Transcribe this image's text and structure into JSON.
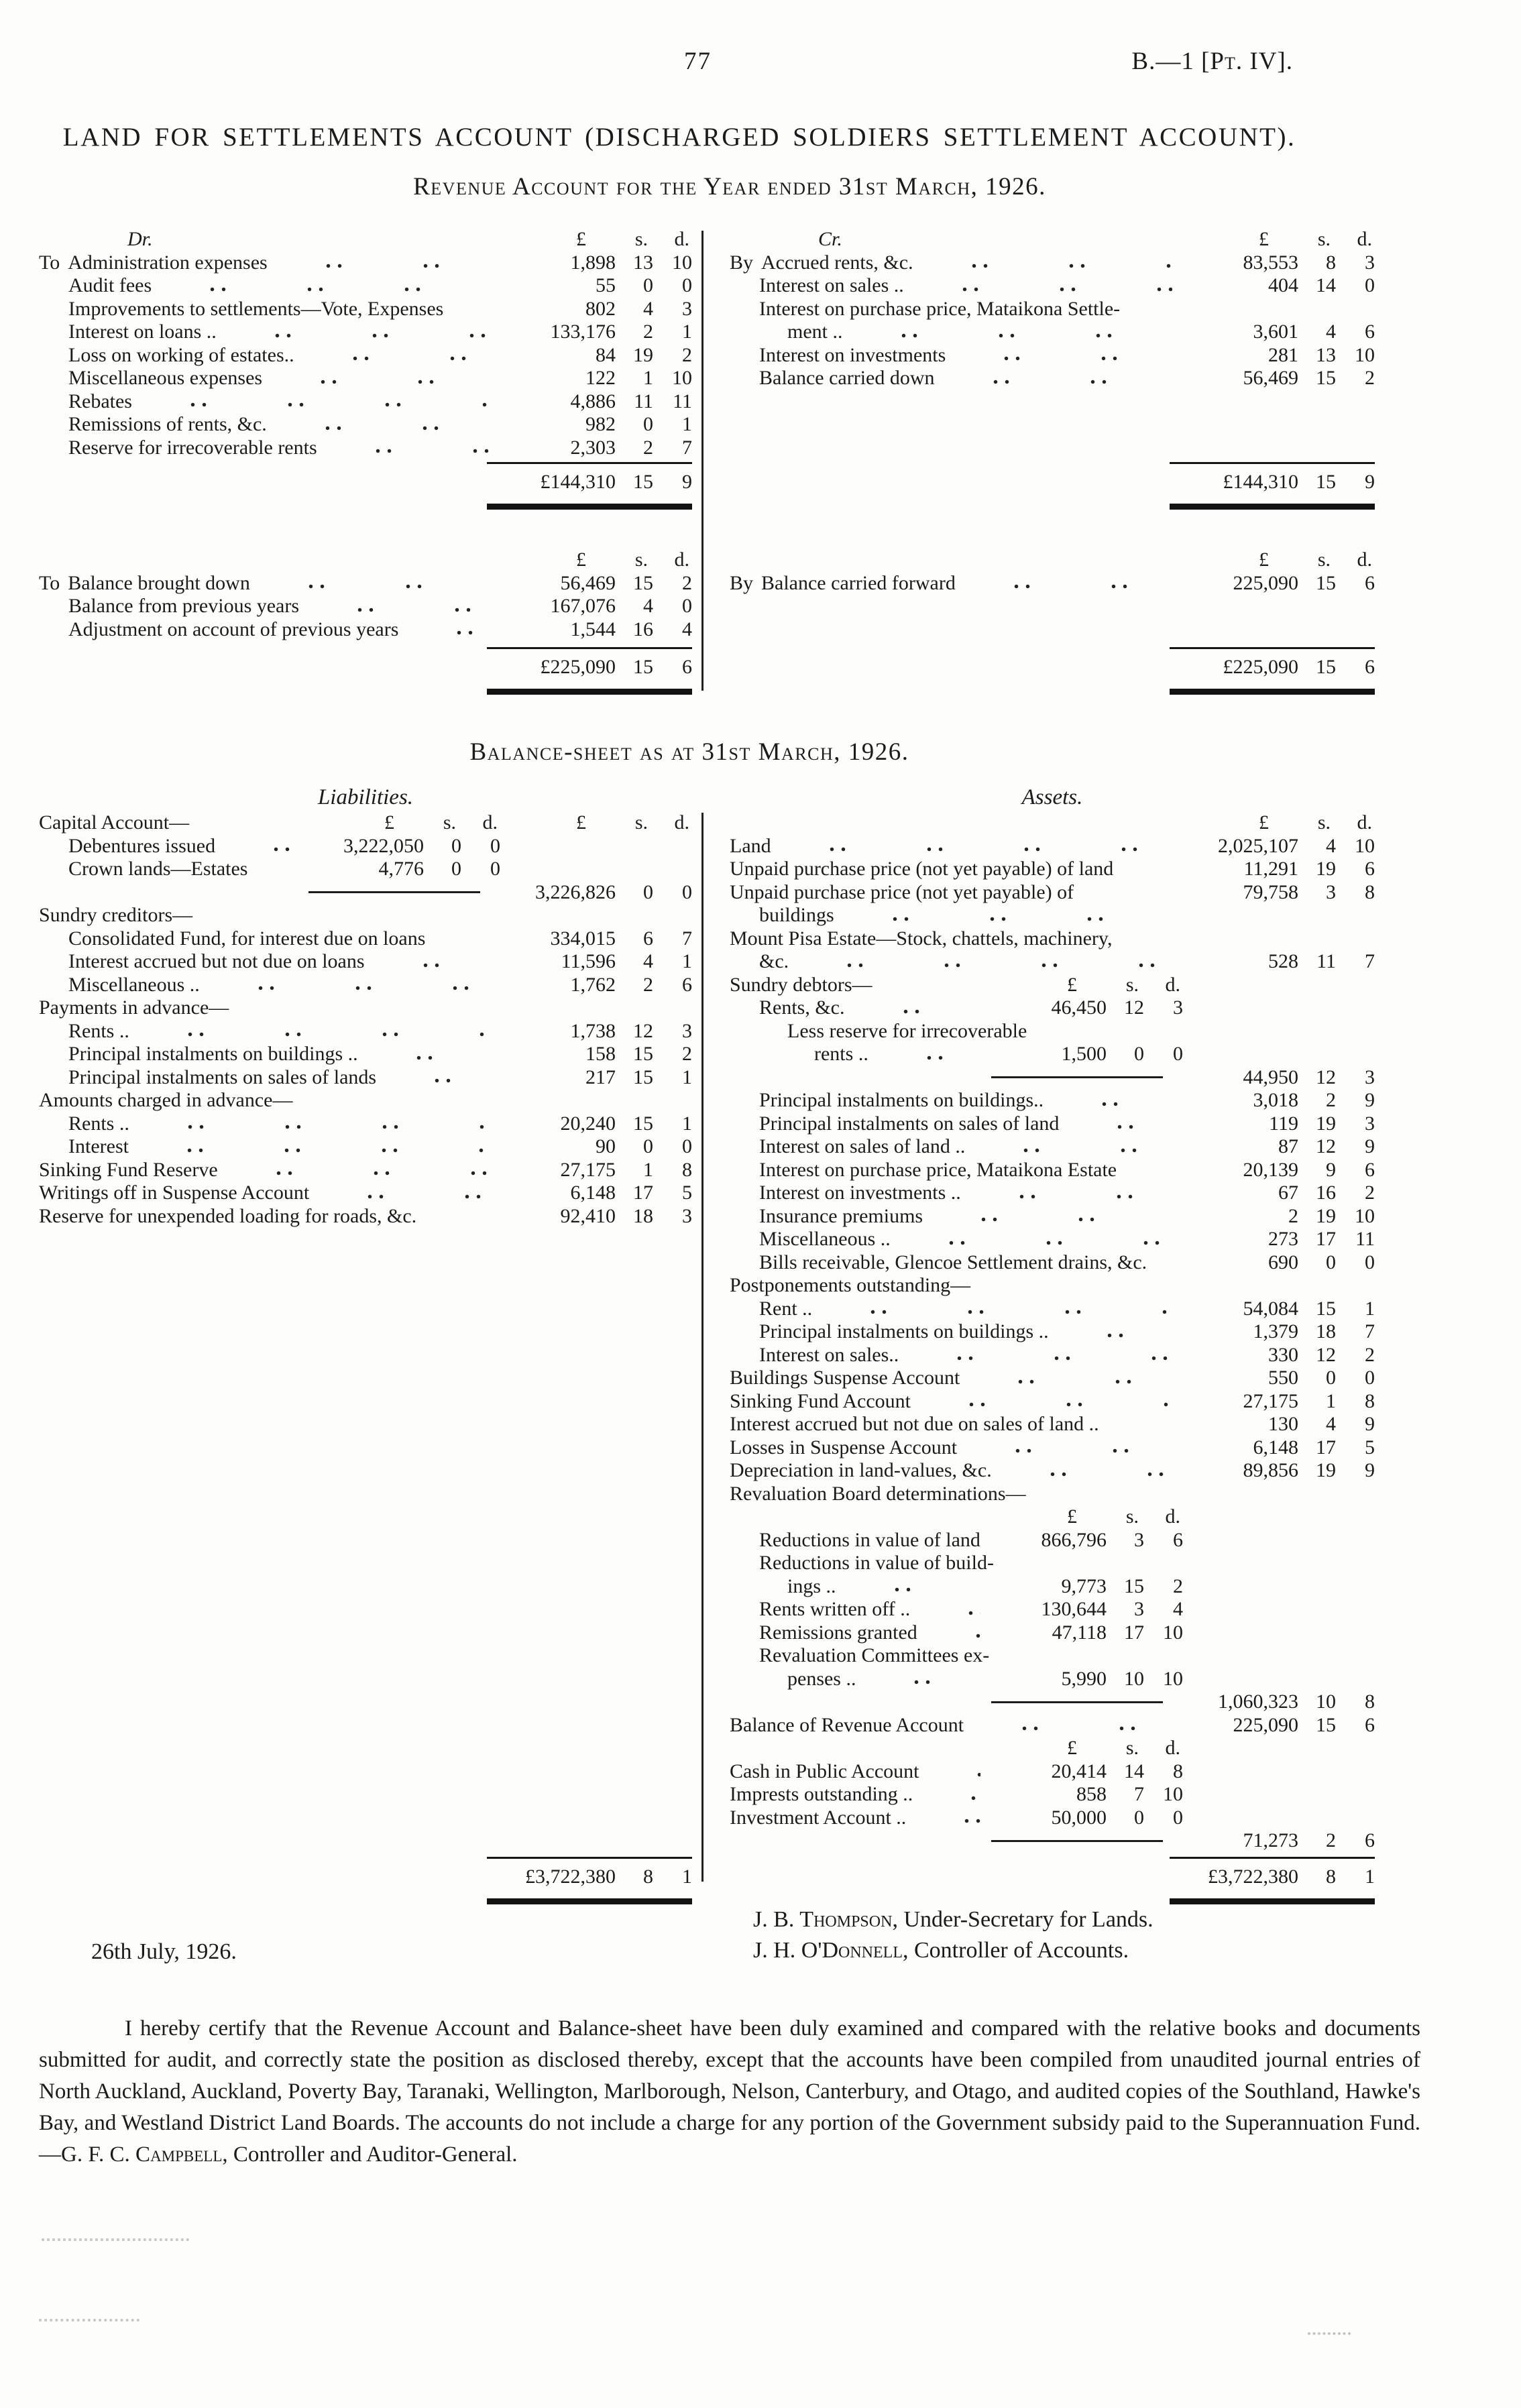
{
  "page": {
    "number": "77",
    "doc_ref_prefix": "B.—1 [",
    "doc_ref_part": "Pt.",
    "doc_ref_suffix": " IV].",
    "title": "LAND FOR SETTLEMENTS ACCOUNT (DISCHARGED SOLDIERS SETTLEMENT ACCOUNT).",
    "revenue_heading": "Revenue Account for the Year ended 31st March, 1926.",
    "balance_heading": "Balance-sheet as at 31st March, 1926."
  },
  "currency": {
    "pound": "£",
    "s": "s.",
    "d": "d."
  },
  "revenue": {
    "sec1": {
      "dr": {
        "rows": [
          {
            "t": "colhead",
            "label": "Dr."
          },
          {
            "t": "row",
            "pre": "To",
            "label": "Administration expenses",
            "p": "1,898",
            "s": "13",
            "d": "10"
          },
          {
            "t": "row",
            "ind": 1,
            "label": "Audit fees",
            "p": "55",
            "s": "0",
            "d": "0"
          },
          {
            "t": "row",
            "ind": 1,
            "label": "Improvements to settlements—Vote, Expenses",
            "lead": false,
            "p": "802",
            "s": "4",
            "d": "3"
          },
          {
            "t": "row",
            "ind": 1,
            "label": "Interest on loans ..",
            "p": "133,176",
            "s": "2",
            "d": "1"
          },
          {
            "t": "row",
            "ind": 1,
            "label": "Loss on working of estates..",
            "p": "84",
            "s": "19",
            "d": "2"
          },
          {
            "t": "row",
            "ind": 1,
            "label": "Miscellaneous expenses",
            "p": "122",
            "s": "1",
            "d": "10"
          },
          {
            "t": "row",
            "ind": 1,
            "label": "Rebates",
            "p": "4,886",
            "s": "11",
            "d": "11"
          },
          {
            "t": "row",
            "ind": 1,
            "label": "Remissions of rents, &c.",
            "p": "982",
            "s": "0",
            "d": "1"
          },
          {
            "t": "row",
            "ind": 1,
            "label": "Reserve for irrecoverable rents",
            "p": "2,303",
            "s": "2",
            "d": "7"
          }
        ],
        "total": {
          "p": "£144,310",
          "s": "15",
          "d": "9"
        }
      },
      "cr": {
        "rows": [
          {
            "t": "colhead",
            "label": "Cr."
          },
          {
            "t": "row",
            "pre": "By",
            "label": "Accrued rents, &c.",
            "p": "83,553",
            "s": "8",
            "d": "3"
          },
          {
            "t": "row",
            "ind": 1,
            "label": "Interest on sales ..",
            "p": "404",
            "s": "14",
            "d": "0"
          },
          {
            "t": "row",
            "ind": 1,
            "label": "Interest on purchase price, Mataikona Settle-",
            "lead": false
          },
          {
            "t": "row",
            "ind": 2,
            "label": "ment ..",
            "p": "3,601",
            "s": "4",
            "d": "6"
          },
          {
            "t": "row",
            "ind": 1,
            "label": "Interest on investments",
            "p": "281",
            "s": "13",
            "d": "10"
          },
          {
            "t": "row",
            "ind": 1,
            "label": "Balance carried down",
            "p": "56,469",
            "s": "15",
            "d": "2"
          }
        ],
        "total": {
          "p": "£144,310",
          "s": "15",
          "d": "9"
        }
      }
    },
    "sec2": {
      "dr": {
        "rows": [
          {
            "t": "colhead"
          },
          {
            "t": "row",
            "pre": "To",
            "label": "Balance brought down",
            "p": "56,469",
            "s": "15",
            "d": "2"
          },
          {
            "t": "row",
            "ind": 1,
            "label": "Balance from previous years",
            "p": "167,076",
            "s": "4",
            "d": "0"
          },
          {
            "t": "row",
            "ind": 1,
            "label": "Adjustment on account of previous years",
            "p": "1,544",
            "s": "16",
            "d": "4"
          }
        ],
        "total": {
          "p": "£225,090",
          "s": "15",
          "d": "6"
        }
      },
      "cr": {
        "rows": [
          {
            "t": "colhead"
          },
          {
            "t": "row",
            "pre": "By",
            "label": "Balance carried forward",
            "p": "225,090",
            "s": "15",
            "d": "6"
          }
        ],
        "total": {
          "p": "£225,090",
          "s": "15",
          "d": "6"
        }
      }
    }
  },
  "balance": {
    "liabilities_title": "Liabilities.",
    "assets_title": "Assets.",
    "liabilities": {
      "rows": [
        {
          "t": "colhead",
          "label": "Capital Account—",
          "heads": "both"
        },
        {
          "t": "row",
          "ind": 1,
          "label": "Debentures issued",
          "grp": "in",
          "p": "3,222,050",
          "s": "0",
          "d": "0"
        },
        {
          "t": "row",
          "ind": 1,
          "label": "Crown lands—Estates",
          "grp": "in",
          "p": "4,776",
          "s": "0",
          "d": "0"
        },
        {
          "t": "sum",
          "p": "3,226,826",
          "s": "0",
          "d": "0"
        },
        {
          "t": "head",
          "label": "Sundry creditors—"
        },
        {
          "t": "row",
          "ind": 1,
          "label": "Consolidated Fund, for interest due on loans",
          "lead": false,
          "grp": "out",
          "p": "334,015",
          "s": "6",
          "d": "7"
        },
        {
          "t": "row",
          "ind": 1,
          "label": "Interest accrued but not due on loans",
          "grp": "out",
          "p": "11,596",
          "s": "4",
          "d": "1"
        },
        {
          "t": "row",
          "ind": 1,
          "label": "Miscellaneous ..",
          "grp": "out",
          "p": "1,762",
          "s": "2",
          "d": "6"
        },
        {
          "t": "head",
          "label": "Payments in advance—"
        },
        {
          "t": "row",
          "ind": 1,
          "label": "Rents ..",
          "grp": "out",
          "p": "1,738",
          "s": "12",
          "d": "3"
        },
        {
          "t": "row",
          "ind": 1,
          "label": "Principal instalments on buildings ..",
          "grp": "out",
          "p": "158",
          "s": "15",
          "d": "2"
        },
        {
          "t": "row",
          "ind": 1,
          "label": "Principal instalments on sales of lands",
          "grp": "out",
          "p": "217",
          "s": "15",
          "d": "1"
        },
        {
          "t": "head",
          "label": "Amounts charged in advance—"
        },
        {
          "t": "row",
          "ind": 1,
          "label": "Rents ..",
          "grp": "out",
          "p": "20,240",
          "s": "15",
          "d": "1"
        },
        {
          "t": "row",
          "ind": 1,
          "label": "Interest",
          "grp": "out",
          "p": "90",
          "s": "0",
          "d": "0"
        },
        {
          "t": "row",
          "label": "Sinking Fund Reserve",
          "grp": "out",
          "p": "27,175",
          "s": "1",
          "d": "8"
        },
        {
          "t": "row",
          "label": "Writings off in Suspense Account",
          "grp": "out",
          "p": "6,148",
          "s": "17",
          "d": "5"
        },
        {
          "t": "row",
          "label": "Reserve for unexpended loading for roads, &c.",
          "lead": false,
          "grp": "out",
          "p": "92,410",
          "s": "18",
          "d": "3"
        }
      ],
      "total": {
        "p": "£3,722,380",
        "s": "8",
        "d": "1"
      }
    },
    "assets": {
      "rows": [
        {
          "t": "colhead",
          "heads": "out"
        },
        {
          "t": "row",
          "label": "Land",
          "grp": "out",
          "p": "2,025,107",
          "s": "4",
          "d": "10"
        },
        {
          "t": "row",
          "label": "Unpaid purchase price (not yet payable) of land",
          "lead": false,
          "grp": "out",
          "p": "11,291",
          "s": "19",
          "d": "6"
        },
        {
          "t": "row",
          "label": "Unpaid purchase price (not yet payable) of",
          "lead": false,
          "grp": "out",
          "p": "79,758",
          "s": "3",
          "d": "8"
        },
        {
          "t": "row",
          "ind": 1,
          "label": "buildings",
          "lead": true
        },
        {
          "t": "row",
          "label": "Mount Pisa Estate—Stock, chattels, machinery,",
          "lead": false
        },
        {
          "t": "row",
          "ind": 1,
          "label": "&c.",
          "grp": "out",
          "p": "528",
          "s": "11",
          "d": "7"
        },
        {
          "t": "colhead",
          "label": "Sundry debtors—",
          "heads": "in"
        },
        {
          "t": "row",
          "ind": 1,
          "label": "Rents, &c.",
          "grp": "in",
          "p": "46,450",
          "s": "12",
          "d": "3"
        },
        {
          "t": "row",
          "ind": 2,
          "label": "Less reserve for irrecoverable",
          "lead": false
        },
        {
          "t": "row",
          "ind": 3,
          "label": "rents ..",
          "grp": "in",
          "p": "1,500",
          "s": "0",
          "d": "0"
        },
        {
          "t": "sum",
          "p": "44,950",
          "s": "12",
          "d": "3"
        },
        {
          "t": "row",
          "ind": 1,
          "label": "Principal instalments on buildings..",
          "grp": "out",
          "p": "3,018",
          "s": "2",
          "d": "9"
        },
        {
          "t": "row",
          "ind": 1,
          "label": "Principal instalments on sales of land",
          "grp": "out",
          "p": "119",
          "s": "19",
          "d": "3"
        },
        {
          "t": "row",
          "ind": 1,
          "label": "Interest on sales of land ..",
          "grp": "out",
          "p": "87",
          "s": "12",
          "d": "9"
        },
        {
          "t": "row",
          "ind": 1,
          "label": "Interest on purchase price, Mataikona Estate",
          "lead": false,
          "grp": "out",
          "p": "20,139",
          "s": "9",
          "d": "6"
        },
        {
          "t": "row",
          "ind": 1,
          "label": "Interest on investments ..",
          "grp": "out",
          "p": "67",
          "s": "16",
          "d": "2"
        },
        {
          "t": "row",
          "ind": 1,
          "label": "Insurance premiums",
          "grp": "out",
          "p": "2",
          "s": "19",
          "d": "10"
        },
        {
          "t": "row",
          "ind": 1,
          "label": "Miscellaneous ..",
          "grp": "out",
          "p": "273",
          "s": "17",
          "d": "11"
        },
        {
          "t": "row",
          "ind": 1,
          "label": "Bills receivable, Glencoe Settlement drains, &c.",
          "lead": false,
          "grp": "out",
          "p": "690",
          "s": "0",
          "d": "0"
        },
        {
          "t": "head",
          "label": "Postponements outstanding—"
        },
        {
          "t": "row",
          "ind": 1,
          "label": "Rent ..",
          "grp": "out",
          "p": "54,084",
          "s": "15",
          "d": "1"
        },
        {
          "t": "row",
          "ind": 1,
          "label": "Principal instalments on buildings ..",
          "grp": "out",
          "p": "1,379",
          "s": "18",
          "d": "7"
        },
        {
          "t": "row",
          "ind": 1,
          "label": "Interest on sales..",
          "grp": "out",
          "p": "330",
          "s": "12",
          "d": "2"
        },
        {
          "t": "row",
          "label": "Buildings Suspense Account",
          "grp": "out",
          "p": "550",
          "s": "0",
          "d": "0"
        },
        {
          "t": "row",
          "label": "Sinking Fund Account",
          "grp": "out",
          "p": "27,175",
          "s": "1",
          "d": "8"
        },
        {
          "t": "row",
          "label": "Interest accrued but not due on sales of land ..",
          "lead": false,
          "grp": "out",
          "p": "130",
          "s": "4",
          "d": "9"
        },
        {
          "t": "row",
          "label": "Losses in Suspense Account",
          "grp": "out",
          "p": "6,148",
          "s": "17",
          "d": "5"
        },
        {
          "t": "row",
          "label": "Depreciation in land-values, &c.",
          "grp": "out",
          "p": "89,856",
          "s": "19",
          "d": "9"
        },
        {
          "t": "head",
          "label": "Revaluation Board determinations—"
        },
        {
          "t": "colhead",
          "heads": "in"
        },
        {
          "t": "row",
          "ind": 1,
          "label": "Reductions in value of land",
          "lead": false,
          "grp": "in",
          "p": "866,796",
          "s": "3",
          "d": "6"
        },
        {
          "t": "row",
          "ind": 1,
          "label": "Reductions in value of build-",
          "lead": false
        },
        {
          "t": "row",
          "ind": 2,
          "label": "ings ..",
          "grp": "in",
          "p": "9,773",
          "s": "15",
          "d": "2"
        },
        {
          "t": "row",
          "ind": 1,
          "label": "Rents written off ..",
          "grp": "in",
          "p": "130,644",
          "s": "3",
          "d": "4"
        },
        {
          "t": "row",
          "ind": 1,
          "label": "Remissions granted",
          "grp": "in",
          "p": "47,118",
          "s": "17",
          "d": "10"
        },
        {
          "t": "row",
          "ind": 1,
          "label": "Revaluation Committees ex-",
          "lead": false
        },
        {
          "t": "row",
          "ind": 2,
          "label": "penses ..",
          "grp": "in",
          "p": "5,990",
          "s": "10",
          "d": "10"
        },
        {
          "t": "sum",
          "p": "1,060,323",
          "s": "10",
          "d": "8"
        },
        {
          "t": "row",
          "label": "Balance of Revenue Account",
          "grp": "out",
          "p": "225,090",
          "s": "15",
          "d": "6"
        },
        {
          "t": "colhead",
          "heads": "in"
        },
        {
          "t": "row",
          "label": "Cash in Public Account",
          "grp": "in",
          "p": "20,414",
          "s": "14",
          "d": "8"
        },
        {
          "t": "row",
          "label": "Imprests outstanding ..",
          "grp": "in",
          "p": "858",
          "s": "7",
          "d": "10"
        },
        {
          "t": "row",
          "label": "Investment Account ..",
          "grp": "in",
          "p": "50,000",
          "s": "0",
          "d": "0"
        },
        {
          "t": "sum",
          "p": "71,273",
          "s": "2",
          "d": "6"
        }
      ],
      "total": {
        "p": "£3,722,380",
        "s": "8",
        "d": "1"
      }
    }
  },
  "signatures": {
    "sig1_name": "J. B. Thompson",
    "sig1_title": ", Under-Secretary for Lands.",
    "sig2_name": "J. H. O'Donnell",
    "sig2_title": ", Controller of Accounts.",
    "date": "26th July, 1926."
  },
  "certification": {
    "before": "I hereby certify that the Revenue Account and Balance-sheet have been duly examined and compared with the relative books and documents submitted for audit, and correctly state the position as disclosed thereby, except that the accounts have been compiled from unaudited journal entries of North Auckland, Auckland, Poverty Bay, Taranaki, Wellington, Marlborough, Nelson, Canterbury, and Otago, and audited copies of the Southland, Hawke's Bay, and Westland District Land Boards.  The accounts do not include a charge for any portion of the Government subsidy paid to the Superannuation Fund.—",
    "name": "G. F. C. Campbell",
    "after": ", Controller and Auditor-General."
  }
}
